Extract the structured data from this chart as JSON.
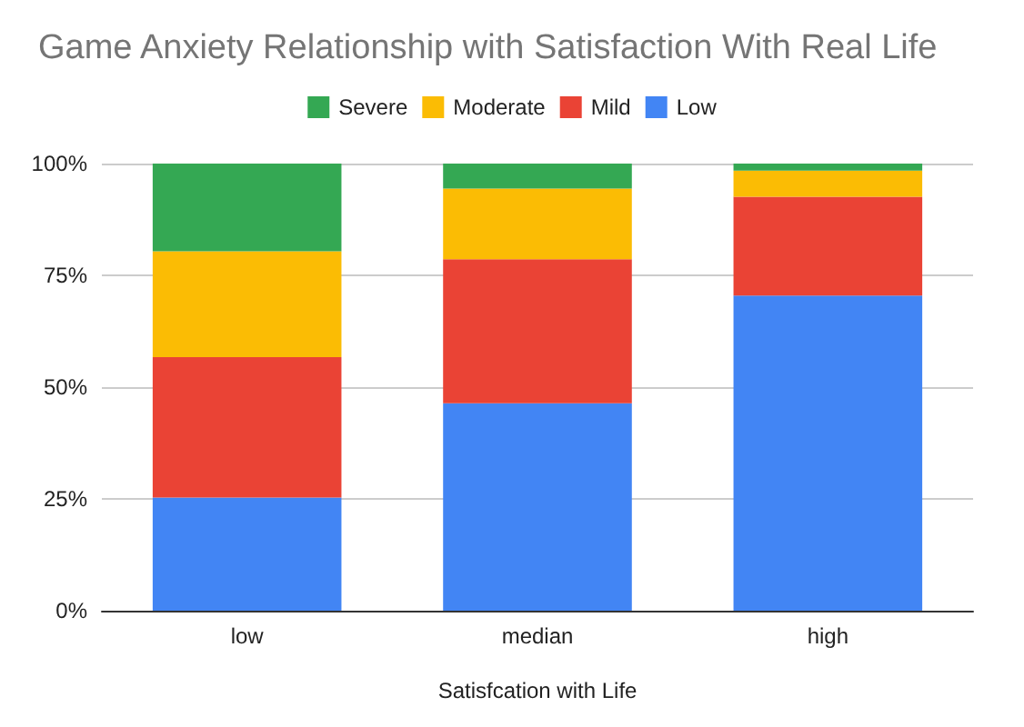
{
  "chart_data": {
    "type": "bar",
    "stacked": true,
    "title": "Game Anxiety Relationship with Satisfaction With Real Life",
    "xlabel": "Satisfcation with Life",
    "categories": [
      "low",
      "median",
      "high"
    ],
    "series": [
      {
        "name": "Low",
        "color": "#4285f4",
        "values": [
          25.3,
          46.4,
          70.5
        ]
      },
      {
        "name": "Mild",
        "color": "#ea4335",
        "values": [
          31.4,
          32.2,
          22.1
        ]
      },
      {
        "name": "Moderate",
        "color": "#fbbc04",
        "values": [
          23.7,
          15.8,
          5.8
        ]
      },
      {
        "name": "Severe",
        "color": "#34a853",
        "values": [
          19.6,
          5.6,
          1.6
        ]
      }
    ],
    "ylim": [
      0,
      100
    ],
    "yticks": [
      {
        "value": 0,
        "label": "0%"
      },
      {
        "value": 25,
        "label": "25%"
      },
      {
        "value": 50,
        "label": "50%"
      },
      {
        "value": 75,
        "label": "75%"
      },
      {
        "value": 100,
        "label": "100%"
      }
    ],
    "grid": "y",
    "legend": "top"
  }
}
